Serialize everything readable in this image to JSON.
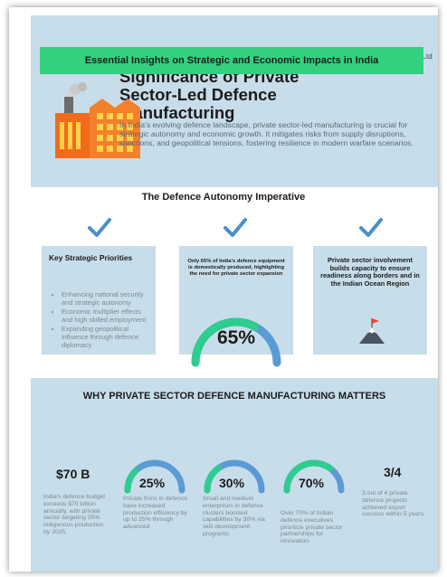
{
  "header": {
    "brand": "Defence India Ltd",
    "title": "Strategic and Economic Significance of Private Sector-Led Defence Manufacturing",
    "intro": "In India's evolving defence landscape, private sector-led manufacturing is crucial for strategic autonomy and economic growth. It mitigates risks from supply disruptions, sanctions, and geopolitical tensions, fostering resilience in modern warfare scenarios."
  },
  "autonomy": {
    "title": "The Defence Autonomy Imperative",
    "priorities": {
      "heading": "Key Strategic Priorities",
      "items": [
        "Enhancing national security and strategic autonomy",
        "Economic multiplier effects and high skilled employment",
        "Expanding geopolitical influence through defence diplomacy"
      ]
    },
    "domestic": {
      "note": "Only 65% of India's defence equipment is domestically produced, highlighting the need for private sector expansion",
      "value": "65%",
      "fraction": 0.65
    },
    "readiness": {
      "note": "Private sector involvement builds capacity to ensure readiness along borders and in the Indian Ocean Region"
    }
  },
  "why": {
    "title": "WHY PRIVATE SECTOR DEFENCE MANUFACTURING MATTERS",
    "banner": "Essential Insights on Strategic and Economic Impacts in India",
    "stats": [
      {
        "value": "$70 B",
        "desc": "India's defence budget exceeds $70 billion annually, with private sector targeting 25% indigenous production by 2025."
      },
      {
        "value": "25%",
        "desc": "Private firms in defence have increased production efficiency by up to 25% through advanced",
        "fraction": 0.25
      },
      {
        "value": "30%",
        "desc": "Small and medium enterprises in defence clusters boosted capabilities by 30% via skill development programs.",
        "fraction": 0.3
      },
      {
        "value": "70%",
        "desc": "Over 70% of Indian defence executives prioritize private sector partnerships for innovation.",
        "fraction": 0.7
      },
      {
        "value": "3/4",
        "desc": "3 out of 4 private defence projects achieved export success within 5 years."
      }
    ]
  },
  "colors": {
    "panel": "#c7dde9",
    "accent_green": "#33d07f",
    "gauge_green": "#2ecc8f",
    "gauge_blue": "#5b9bd5",
    "check_blue": "#4a8fc7",
    "factory_orange": "#f26b1d"
  }
}
